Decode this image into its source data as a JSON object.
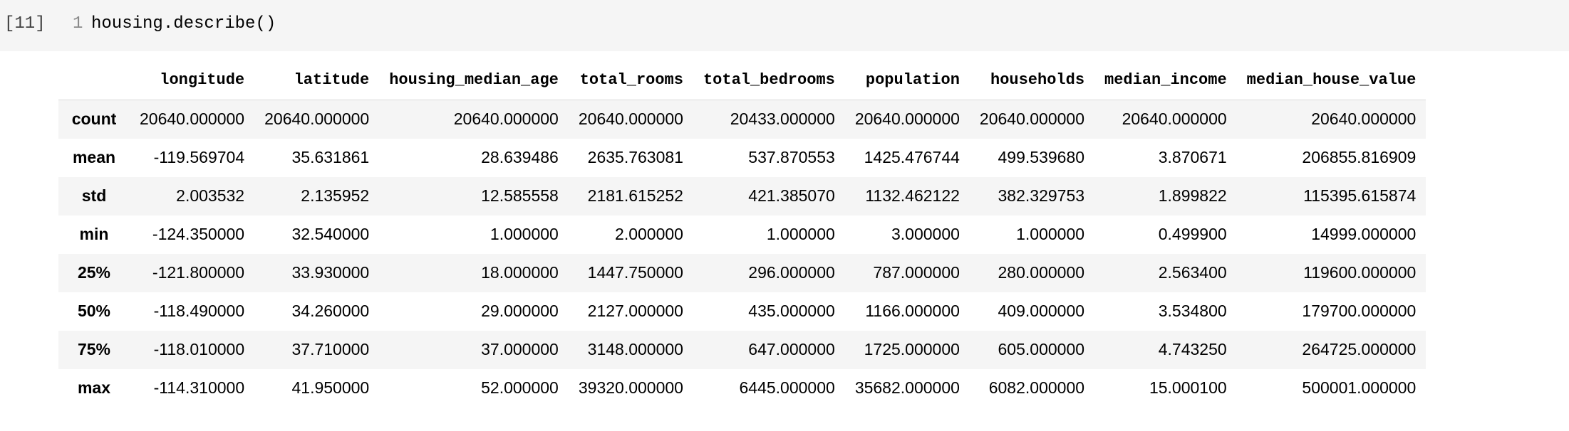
{
  "cell": {
    "execution_count": "[11]",
    "line_number": "1",
    "code": "housing.describe()"
  },
  "table": {
    "columns": [
      "",
      "longitude",
      "latitude",
      "housing_median_age",
      "total_rooms",
      "total_bedrooms",
      "population",
      "households",
      "median_income",
      "median_house_value"
    ],
    "rows": [
      {
        "index": "count",
        "values": [
          "20640.000000",
          "20640.000000",
          "20640.000000",
          "20640.000000",
          "20433.000000",
          "20640.000000",
          "20640.000000",
          "20640.000000",
          "20640.000000"
        ]
      },
      {
        "index": "mean",
        "values": [
          "-119.569704",
          "35.631861",
          "28.639486",
          "2635.763081",
          "537.870553",
          "1425.476744",
          "499.539680",
          "3.870671",
          "206855.816909"
        ]
      },
      {
        "index": "std",
        "values": [
          "2.003532",
          "2.135952",
          "12.585558",
          "2181.615252",
          "421.385070",
          "1132.462122",
          "382.329753",
          "1.899822",
          "115395.615874"
        ]
      },
      {
        "index": "min",
        "values": [
          "-124.350000",
          "32.540000",
          "1.000000",
          "2.000000",
          "1.000000",
          "3.000000",
          "1.000000",
          "0.499900",
          "14999.000000"
        ]
      },
      {
        "index": "25%",
        "values": [
          "-121.800000",
          "33.930000",
          "18.000000",
          "1447.750000",
          "296.000000",
          "787.000000",
          "280.000000",
          "2.563400",
          "119600.000000"
        ]
      },
      {
        "index": "50%",
        "values": [
          "-118.490000",
          "34.260000",
          "29.000000",
          "2127.000000",
          "435.000000",
          "1166.000000",
          "409.000000",
          "3.534800",
          "179700.000000"
        ]
      },
      {
        "index": "75%",
        "values": [
          "-118.010000",
          "37.710000",
          "37.000000",
          "3148.000000",
          "647.000000",
          "1725.000000",
          "605.000000",
          "4.743250",
          "264725.000000"
        ]
      },
      {
        "index": "max",
        "values": [
          "-114.310000",
          "41.950000",
          "52.000000",
          "39320.000000",
          "6445.000000",
          "35682.000000",
          "6082.000000",
          "15.000100",
          "500001.000000"
        ]
      }
    ]
  }
}
